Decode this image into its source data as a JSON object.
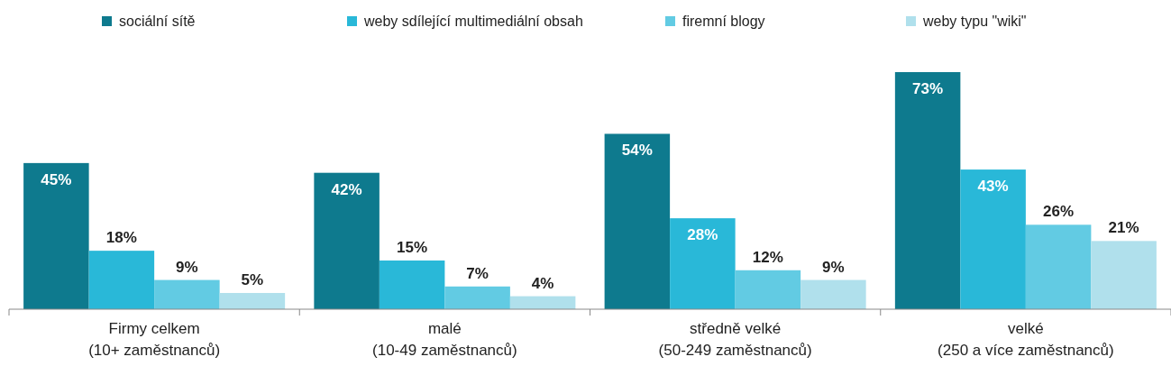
{
  "chart_data": {
    "type": "bar",
    "categories": [
      "Firmy celkem\n(10+ zaměstnanců)",
      "malé\n(10-49 zaměstnanců)",
      "středně velké\n(50-249 zaměstnanců)",
      "velké\n(250 a více zaměstnanců)"
    ],
    "series": [
      {
        "name": "sociální sítě",
        "color": "#0e7a8e",
        "values": [
          45,
          42,
          54,
          73
        ],
        "value_labels": [
          "45%",
          "42%",
          "54%",
          "73%"
        ]
      },
      {
        "name": "weby sdílející multimediální obsah",
        "color": "#29b8d8",
        "values": [
          18,
          15,
          28,
          43
        ],
        "value_labels": [
          "18%",
          "15%",
          "28%",
          "43%"
        ]
      },
      {
        "name": "firemní blogy",
        "color": "#62cbe3",
        "values": [
          9,
          7,
          12,
          26
        ],
        "value_labels": [
          "9%",
          "7%",
          "12%",
          "26%"
        ]
      },
      {
        "name": "weby typu \"wiki\"",
        "color": "#b0e0ec",
        "values": [
          5,
          4,
          9,
          21
        ],
        "value_labels": [
          "5%",
          "4%",
          "9%",
          "21%"
        ]
      }
    ],
    "legend": "top"
  }
}
